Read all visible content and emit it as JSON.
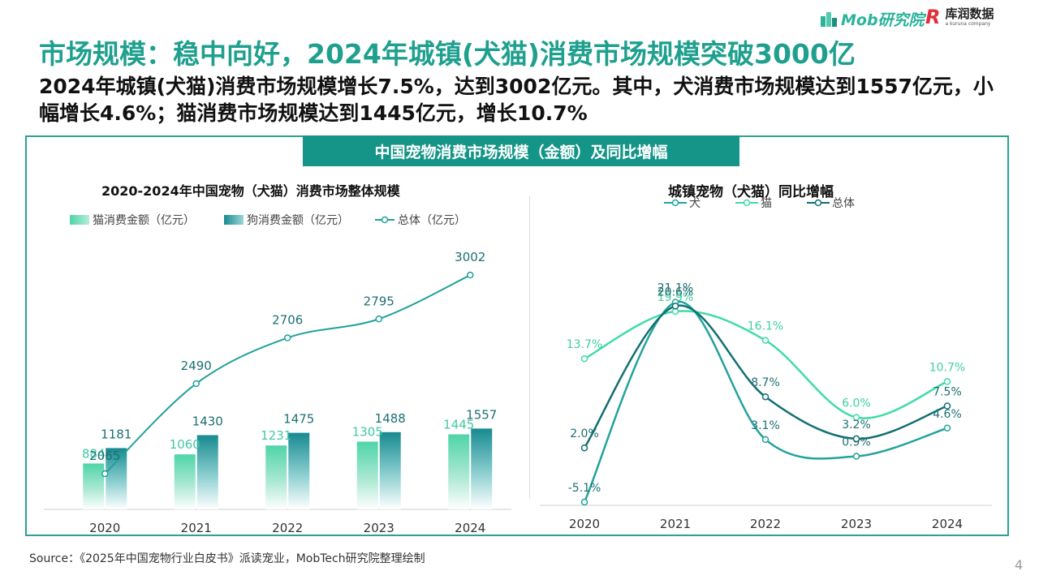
{
  "brand": {
    "mob_logo": "Mob研究院",
    "kr_logo_cn": "库润数据",
    "kr_logo_en": "a kuruna company",
    "kr_mark": "R"
  },
  "page_title": "市场规模：稳中向好，2024年城镇(犬猫)消费市场规模突破3000亿",
  "subtitle": "2024年城镇(犬猫)消费市场规模增长7.5%，达到3002亿元。其中，犬消费市场规模达到1557亿元，小幅增长4.6%；猫消费市场规模达到1445亿元，增长10.7%",
  "banner": "中国宠物消费市场规模（金额）及同比增幅",
  "source": "Source：《2025年中国宠物行业白皮书》派读宠业，MobTech研究院整理绘制",
  "page_number": "4",
  "colors": {
    "accent": "#1fa08f",
    "banner": "#159587",
    "cat_bar": "#4fd4a8",
    "dog_bar": "#1a8f92",
    "total_line": "#21a199",
    "dog_line": "#22a39b",
    "cat_line": "#3fdba8",
    "total_growth_line": "#136f72"
  },
  "chart_data": [
    {
      "type": "bar",
      "title": "2020-2024年中国宠物（犬猫）消费市场整体规模",
      "categories": [
        "2020",
        "2021",
        "2022",
        "2023",
        "2024"
      ],
      "series": [
        {
          "name": "猫消费金额（亿元）",
          "type": "bar",
          "values": [
            884,
            1060,
            1231,
            1305,
            1445
          ]
        },
        {
          "name": "狗消费金额（亿元）",
          "type": "bar",
          "values": [
            1181,
            1430,
            1475,
            1488,
            1557
          ]
        },
        {
          "name": "总体（亿元）",
          "type": "line",
          "values": [
            2065,
            2490,
            2706,
            2795,
            3002
          ]
        }
      ],
      "legend": "top-left",
      "grid": false
    },
    {
      "type": "line",
      "title": "城镇宠物（犬猫）同比增幅",
      "categories": [
        "2020",
        "2021",
        "2022",
        "2023",
        "2024"
      ],
      "unit": "%",
      "series": [
        {
          "name": "犬",
          "values": [
            -5.1,
            21.1,
            3.1,
            0.9,
            4.6
          ]
        },
        {
          "name": "猫",
          "values": [
            13.7,
            19.9,
            16.1,
            6.0,
            10.7
          ]
        },
        {
          "name": "总体",
          "values": [
            2.0,
            20.6,
            8.7,
            3.2,
            7.5
          ]
        }
      ],
      "legend": "top",
      "grid": false
    }
  ]
}
